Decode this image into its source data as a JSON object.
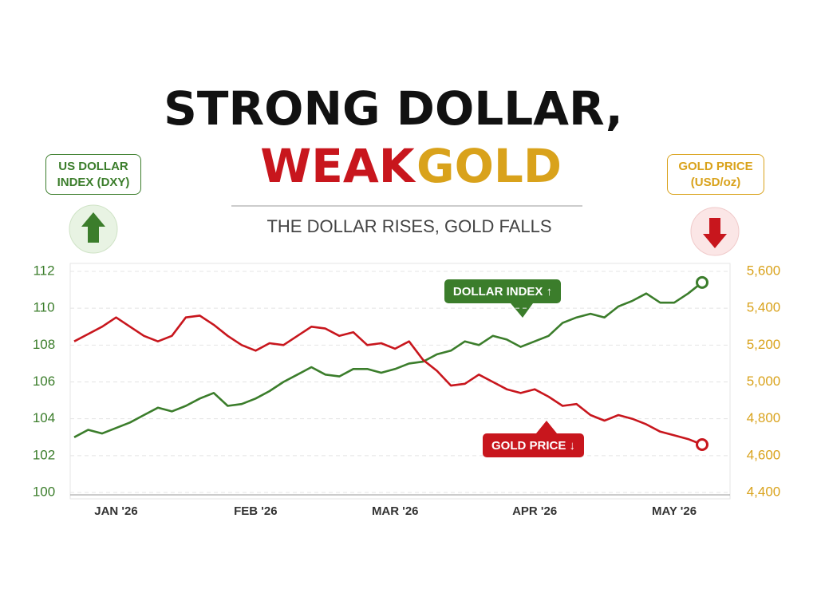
{
  "chart_data": {
    "type": "line",
    "title_parts": [
      "STRONG DOLLAR,",
      "WEAK",
      "GOLD"
    ],
    "subtitle": "THE DOLLAR RISES, GOLD FALLS",
    "ylabel": "US DOLLAR INDEX (DXY)",
    "y2label": "GOLD PRICE (USD/oz)",
    "categories": [
      null,
      null,
      null,
      "JAN '26",
      null,
      null,
      null,
      null,
      null,
      null,
      null,
      null,
      null,
      "FEB '26",
      null,
      null,
      null,
      null,
      null,
      null,
      null,
      null,
      null,
      "MAR '26",
      null,
      null,
      null,
      null,
      null,
      null,
      null,
      null,
      null,
      "APR '26",
      null,
      null,
      null,
      null,
      null,
      null,
      null,
      null,
      null,
      "MAY '26",
      null,
      null
    ],
    "series": [
      {
        "name": "DOLLAR INDEX ↑",
        "color": "#3b7d2b",
        "values": [
          103.0,
          103.4,
          103.2,
          103.5,
          103.8,
          104.2,
          104.6,
          104.4,
          104.7,
          105.1,
          105.4,
          104.7,
          104.8,
          105.1,
          105.5,
          106.0,
          106.4,
          106.8,
          106.4,
          106.3,
          106.7,
          106.7,
          106.5,
          106.7,
          107.0,
          107.1,
          107.5,
          107.7,
          108.2,
          108.0,
          108.5,
          108.3,
          107.9,
          108.2,
          108.5,
          109.2,
          109.5,
          109.7,
          109.5,
          110.1,
          110.4,
          110.8,
          110.3,
          110.3,
          110.8,
          111.4
        ]
      },
      {
        "name": "GOLD PRICE ↓",
        "color": "#c8161d",
        "axis": "y2",
        "values": [
          5220,
          5260,
          5300,
          5350,
          5300,
          5250,
          5220,
          5250,
          5350,
          5360,
          5310,
          5250,
          5200,
          5170,
          5210,
          5200,
          5250,
          5300,
          5290,
          5250,
          5270,
          5200,
          5210,
          5180,
          5220,
          5120,
          5060,
          4980,
          4990,
          5040,
          5000,
          4960,
          4940,
          4960,
          4920,
          4870,
          4880,
          4820,
          4790,
          4820,
          4800,
          4770,
          4730,
          4710,
          4690,
          4660
        ]
      }
    ],
    "ylim": [
      100,
      112
    ],
    "yticks": [
      100,
      102,
      104,
      106,
      108,
      110,
      112
    ],
    "y2lim": [
      4400,
      5600
    ],
    "y2ticks": [
      {
        "value": 4400,
        "label": "4,400"
      },
      {
        "value": 4600,
        "label": "4,600"
      },
      {
        "value": 4800,
        "label": "4,800"
      },
      {
        "value": 5000,
        "label": "5,000"
      },
      {
        "value": 5200,
        "label": "5,200"
      },
      {
        "value": 5400,
        "label": "5,400"
      },
      {
        "value": 5600,
        "label": "5,600"
      }
    ],
    "grid": true
  }
}
